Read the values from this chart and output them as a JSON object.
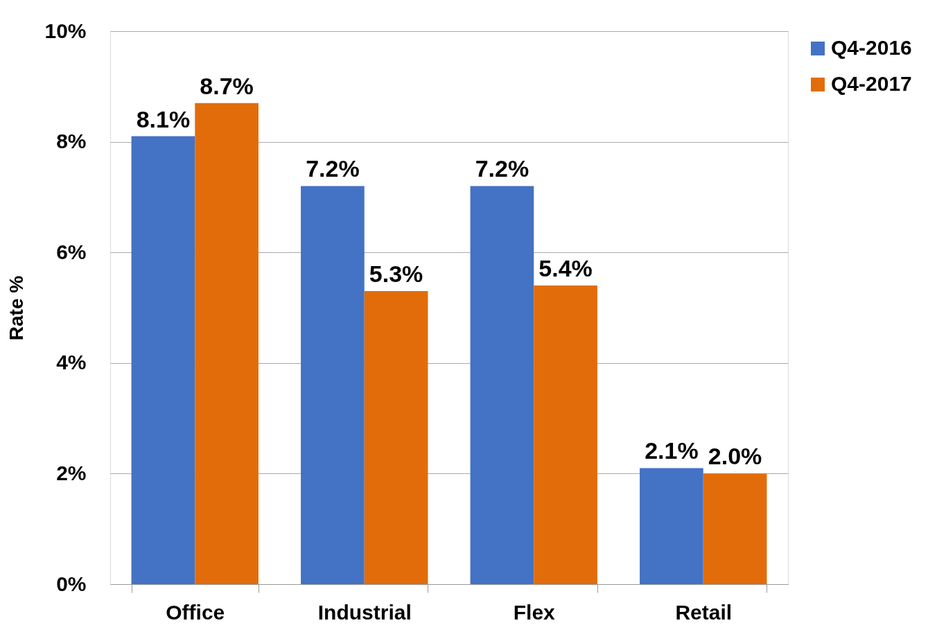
{
  "chart_data": {
    "type": "bar",
    "ylabel": "Rate %",
    "categories": [
      "Office",
      "Industrial",
      "Flex",
      "Retail"
    ],
    "series": [
      {
        "name": "Q4-2016",
        "color": "#4472c4",
        "values": [
          8.1,
          7.2,
          7.2,
          2.1
        ],
        "value_labels": [
          "8.1%",
          "7.2%",
          "7.2%",
          "2.1%"
        ]
      },
      {
        "name": "Q4-2017",
        "color": "#e36c0a",
        "values": [
          8.7,
          5.3,
          5.4,
          2.0
        ],
        "value_labels": [
          "8.7%",
          "5.3%",
          "5.4%",
          "2.0%"
        ]
      }
    ],
    "ylim": [
      0,
      10
    ],
    "yticks": [
      {
        "value": 0,
        "label": "0%"
      },
      {
        "value": 2,
        "label": "2%"
      },
      {
        "value": 4,
        "label": "4%"
      },
      {
        "value": 6,
        "label": "6%"
      },
      {
        "value": 8,
        "label": "8%"
      },
      {
        "value": 10,
        "label": "10%"
      }
    ],
    "grid": "y",
    "legend": "right"
  }
}
